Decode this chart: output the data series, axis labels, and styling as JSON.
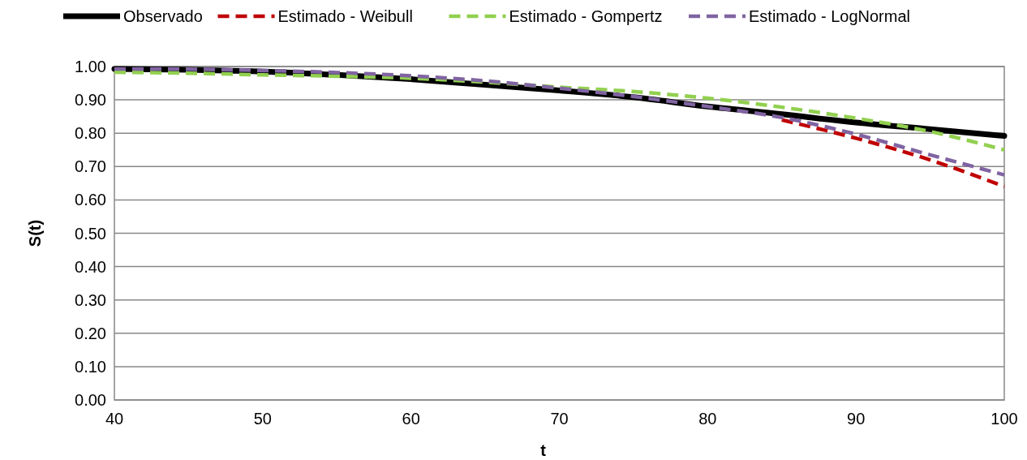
{
  "chart_data": {
    "type": "line",
    "xlabel": "t",
    "ylabel": "S(t)",
    "x": [
      40,
      45,
      50,
      55,
      60,
      65,
      70,
      75,
      80,
      85,
      90,
      95,
      100
    ],
    "xlim": [
      40,
      100
    ],
    "xticks": [
      40,
      50,
      60,
      70,
      80,
      90,
      100
    ],
    "ylim": [
      0,
      1
    ],
    "yticks": [
      {
        "value": 0,
        "label": "0.00"
      },
      {
        "value": 0.1,
        "label": "0.10"
      },
      {
        "value": 0.2,
        "label": "0.20"
      },
      {
        "value": 0.3,
        "label": "0.30"
      },
      {
        "value": 0.4,
        "label": "0.40"
      },
      {
        "value": 0.5,
        "label": "0.50"
      },
      {
        "value": 0.6,
        "label": "0.60"
      },
      {
        "value": 0.7,
        "label": "0.70"
      },
      {
        "value": 0.8,
        "label": "0.80"
      },
      {
        "value": 0.9,
        "label": "0.90"
      },
      {
        "value": 1,
        "label": "1.00"
      }
    ],
    "grid": "y",
    "legend": "top",
    "marker": "none",
    "series": [
      {
        "name": "Observado",
        "color": "#000000",
        "line_style": "solid",
        "values": [
          0.993,
          0.99,
          0.985,
          0.975,
          0.962,
          0.945,
          0.928,
          0.908,
          0.88,
          0.857,
          0.832,
          0.812,
          0.792
        ]
      },
      {
        "name": "Estimado - Weibull",
        "color": "#c00000",
        "line_style": "dashed",
        "values": [
          null,
          null,
          null,
          null,
          null,
          null,
          null,
          null,
          null,
          0.84,
          0.785,
          0.72,
          0.64
        ]
      },
      {
        "name": "Estimado - Gompertz",
        "color": "#92d050",
        "line_style": "dashed",
        "values": [
          0.983,
          0.98,
          0.975,
          0.971,
          0.965,
          0.953,
          0.938,
          0.925,
          0.905,
          0.878,
          0.845,
          0.805,
          0.75
        ]
      },
      {
        "name": "Estimado - LogNormal",
        "color": "#8064a2",
        "line_style": "dashed",
        "values": [
          0.993,
          0.992,
          0.988,
          0.982,
          0.972,
          0.957,
          0.935,
          0.91,
          0.88,
          0.847,
          0.797,
          0.735,
          0.675
        ]
      }
    ]
  }
}
